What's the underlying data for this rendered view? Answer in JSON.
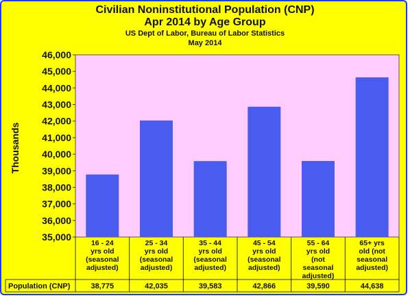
{
  "chart_data": {
    "type": "bar",
    "title": "Civilian Noninstitutional Population (CNP)",
    "title_line2": "Apr 2014 by Age Group",
    "subtitle": "US Dept of Labor, Bureau of Labor Statistics",
    "subtitle_line2": "May 2014",
    "xlabel": "",
    "ylabel": "Thousands",
    "ylim": [
      35000,
      46000
    ],
    "yticks": [
      "35,000",
      "36,000",
      "37,000",
      "38,000",
      "39,000",
      "40,000",
      "41,000",
      "42,000",
      "43,000",
      "44,000",
      "45,000",
      "46,000"
    ],
    "categories": [
      "16 - 24\nyrs old\n(seasonal\nadjusted)",
      "25 - 34\nyrs old\n(seasonal\nadjusted)",
      "35 - 44\nyrs old\n(seasonal\nadjusted)",
      "45 - 54\nyrs old\n(seasonal\nadjusted)",
      "55 - 64\nyrs old\n(not\nseasonal\nadjusted)",
      "65+ yrs\nold (not\nseasonal\nadjusted)"
    ],
    "values": [
      38775,
      42035,
      39583,
      42866,
      39590,
      44638
    ],
    "data_table": {
      "row_label": "Population (CNP)",
      "values": [
        "38,775",
        "42,035",
        "39,583",
        "42,866",
        "39,590",
        "44,638"
      ]
    },
    "grid": false,
    "legend": "none",
    "colors": {
      "background": "#ffff00",
      "plot_area": "#ffccff",
      "bar": "#4a5cf0",
      "border": "#1a3cff"
    }
  }
}
